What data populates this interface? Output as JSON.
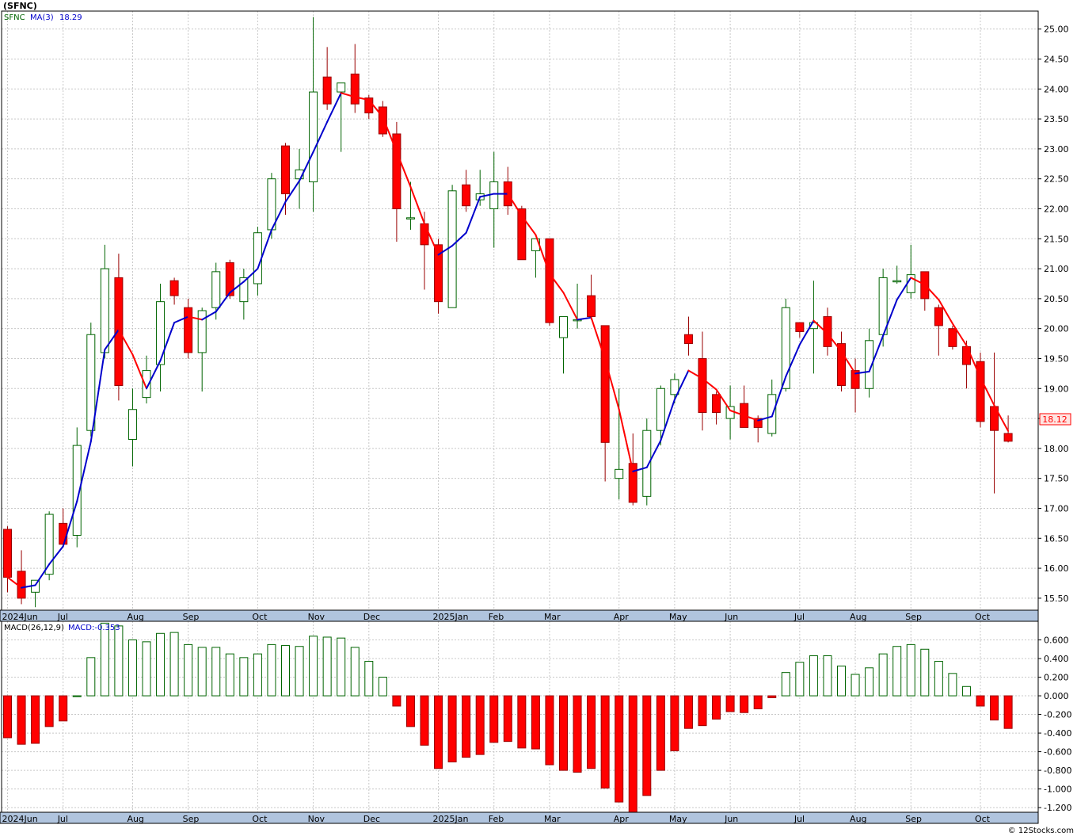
{
  "title": "(SFNC)",
  "credit": "© 12Stocks.com",
  "legend": {
    "symbol": "SFNC",
    "ma_label": "MA(3)",
    "ma_value": "18.29",
    "macd_label": "MACD(26,12,9)",
    "macd_value_label": "MACD:-0.353"
  },
  "last_price_label": "18.12",
  "colors": {
    "up_candle": "#006400",
    "down_candle": "#ff0000",
    "ma_up": "#0000cc",
    "ma_down": "#ff0000",
    "grid": "#c8c8c8",
    "axis_bar": "#b0c4de"
  },
  "month_labels": [
    "2024Jun",
    "Jul",
    "Aug",
    "Sep",
    "Oct",
    "Nov",
    "Dec",
    "2025Jan",
    "Feb",
    "Mar",
    "Apr",
    "May",
    "Jun",
    "Jul",
    "Aug",
    "Sep",
    "Oct"
  ],
  "chart_data": [
    {
      "type": "candlestick",
      "series_name": "SFNC",
      "x_unit": "week",
      "x_range": [
        0,
        72
      ],
      "ylim": [
        15.3,
        25.3
      ],
      "y_ticks": [
        "15.50",
        "16.00",
        "16.50",
        "17.00",
        "17.50",
        "18.00",
        "18.50",
        "19.00",
        "19.50",
        "20.00",
        "20.50",
        "21.00",
        "21.50",
        "22.00",
        "22.50",
        "23.00",
        "23.50",
        "24.00",
        "24.50",
        "25.00"
      ],
      "months": [
        {
          "label": "2024Jun",
          "x": 0
        },
        {
          "label": "Jul",
          "x": 4
        },
        {
          "label": "Aug",
          "x": 9
        },
        {
          "label": "Sep",
          "x": 13
        },
        {
          "label": "Oct",
          "x": 18
        },
        {
          "label": "Nov",
          "x": 22
        },
        {
          "label": "Dec",
          "x": 26
        },
        {
          "label": "2025Jan",
          "x": 31
        },
        {
          "label": "Feb",
          "x": 35
        },
        {
          "label": "Mar",
          "x": 39
        },
        {
          "label": "Apr",
          "x": 44
        },
        {
          "label": "May",
          "x": 48
        },
        {
          "label": "Jun",
          "x": 52
        },
        {
          "label": "Jul",
          "x": 57
        },
        {
          "label": "Aug",
          "x": 61
        },
        {
          "label": "Sep",
          "x": 65
        },
        {
          "label": "Oct",
          "x": 70
        }
      ],
      "candles": [
        {
          "o": 16.65,
          "h": 16.7,
          "l": 15.6,
          "c": 15.85
        },
        {
          "o": 15.95,
          "h": 16.3,
          "l": 15.4,
          "c": 15.5
        },
        {
          "o": 15.6,
          "h": 15.8,
          "l": 15.35,
          "c": 15.8
        },
        {
          "o": 15.9,
          "h": 16.95,
          "l": 15.8,
          "c": 16.9
        },
        {
          "o": 16.75,
          "h": 17.0,
          "l": 16.35,
          "c": 16.4
        },
        {
          "o": 16.55,
          "h": 18.35,
          "l": 16.35,
          "c": 18.05
        },
        {
          "o": 18.3,
          "h": 20.1,
          "l": 18.2,
          "c": 19.9
        },
        {
          "o": 19.6,
          "h": 21.4,
          "l": 19.5,
          "c": 21.0
        },
        {
          "o": 20.85,
          "h": 21.25,
          "l": 18.8,
          "c": 19.05
        },
        {
          "o": 18.15,
          "h": 19.0,
          "l": 17.7,
          "c": 18.65
        },
        {
          "o": 18.85,
          "h": 19.55,
          "l": 18.75,
          "c": 19.3
        },
        {
          "o": 19.4,
          "h": 20.75,
          "l": 18.95,
          "c": 20.45
        },
        {
          "o": 20.8,
          "h": 20.85,
          "l": 20.4,
          "c": 20.55
        },
        {
          "o": 20.35,
          "h": 20.5,
          "l": 19.5,
          "c": 19.6
        },
        {
          "o": 19.6,
          "h": 20.35,
          "l": 18.95,
          "c": 20.3
        },
        {
          "o": 20.35,
          "h": 21.1,
          "l": 20.15,
          "c": 20.95
        },
        {
          "o": 21.1,
          "h": 21.15,
          "l": 20.5,
          "c": 20.55
        },
        {
          "o": 20.45,
          "h": 21.0,
          "l": 20.15,
          "c": 20.85
        },
        {
          "o": 20.75,
          "h": 21.7,
          "l": 20.55,
          "c": 21.6
        },
        {
          "o": 21.65,
          "h": 22.6,
          "l": 21.5,
          "c": 22.5
        },
        {
          "o": 23.05,
          "h": 23.1,
          "l": 21.9,
          "c": 22.25
        },
        {
          "o": 22.5,
          "h": 23.0,
          "l": 22.0,
          "c": 22.65
        },
        {
          "o": 22.45,
          "h": 25.2,
          "l": 21.95,
          "c": 23.95
        },
        {
          "o": 24.2,
          "h": 24.7,
          "l": 23.65,
          "c": 23.75
        },
        {
          "o": 23.95,
          "h": 24.05,
          "l": 22.95,
          "c": 24.1
        },
        {
          "o": 24.25,
          "h": 24.75,
          "l": 23.6,
          "c": 23.75
        },
        {
          "o": 23.85,
          "h": 23.9,
          "l": 23.5,
          "c": 23.6
        },
        {
          "o": 23.7,
          "h": 23.8,
          "l": 23.2,
          "c": 23.25
        },
        {
          "o": 23.25,
          "h": 23.45,
          "l": 21.45,
          "c": 22.0
        },
        {
          "o": 21.85,
          "h": 22.45,
          "l": 21.65,
          "c": 21.85
        },
        {
          "o": 21.75,
          "h": 21.95,
          "l": 20.65,
          "c": 21.4
        },
        {
          "o": 21.4,
          "h": 21.5,
          "l": 20.25,
          "c": 20.45
        },
        {
          "o": 20.35,
          "h": 22.4,
          "l": 20.35,
          "c": 22.3
        },
        {
          "o": 22.4,
          "h": 22.65,
          "l": 21.95,
          "c": 22.05
        },
        {
          "o": 22.15,
          "h": 22.65,
          "l": 22.05,
          "c": 22.25
        },
        {
          "o": 22.0,
          "h": 22.95,
          "l": 21.35,
          "c": 22.45
        },
        {
          "o": 22.45,
          "h": 22.7,
          "l": 21.9,
          "c": 22.05
        },
        {
          "o": 22.0,
          "h": 22.05,
          "l": 21.15,
          "c": 21.15
        },
        {
          "o": 21.3,
          "h": 21.5,
          "l": 20.85,
          "c": 21.5
        },
        {
          "o": 21.5,
          "h": 21.5,
          "l": 20.05,
          "c": 20.1
        },
        {
          "o": 19.85,
          "h": 20.2,
          "l": 19.25,
          "c": 20.2
        },
        {
          "o": 20.15,
          "h": 20.75,
          "l": 20.0,
          "c": 20.15
        },
        {
          "o": 20.55,
          "h": 20.9,
          "l": 20.15,
          "c": 20.2
        },
        {
          "o": 20.05,
          "h": 20.05,
          "l": 17.45,
          "c": 18.1
        },
        {
          "o": 17.5,
          "h": 19.0,
          "l": 17.15,
          "c": 17.65
        },
        {
          "o": 17.75,
          "h": 18.25,
          "l": 17.05,
          "c": 17.1
        },
        {
          "o": 17.2,
          "h": 18.5,
          "l": 17.05,
          "c": 18.3
        },
        {
          "o": 18.3,
          "h": 19.05,
          "l": 18.05,
          "c": 19.0
        },
        {
          "o": 18.9,
          "h": 19.25,
          "l": 18.75,
          "c": 19.15
        },
        {
          "o": 19.9,
          "h": 20.2,
          "l": 19.55,
          "c": 19.75
        },
        {
          "o": 19.5,
          "h": 19.95,
          "l": 18.3,
          "c": 18.6
        },
        {
          "o": 18.9,
          "h": 18.95,
          "l": 18.4,
          "c": 18.6
        },
        {
          "o": 18.5,
          "h": 19.05,
          "l": 18.15,
          "c": 18.7
        },
        {
          "o": 18.75,
          "h": 19.05,
          "l": 18.35,
          "c": 18.35
        },
        {
          "o": 18.5,
          "h": 18.55,
          "l": 18.1,
          "c": 18.35
        },
        {
          "o": 18.25,
          "h": 19.15,
          "l": 18.2,
          "c": 18.9
        },
        {
          "o": 19.0,
          "h": 20.5,
          "l": 18.95,
          "c": 20.35
        },
        {
          "o": 20.1,
          "h": 20.1,
          "l": 19.85,
          "c": 19.95
        },
        {
          "o": 20.0,
          "h": 20.8,
          "l": 19.25,
          "c": 20.1
        },
        {
          "o": 20.2,
          "h": 20.35,
          "l": 19.55,
          "c": 19.7
        },
        {
          "o": 19.75,
          "h": 19.95,
          "l": 18.95,
          "c": 19.05
        },
        {
          "o": 19.3,
          "h": 19.5,
          "l": 18.6,
          "c": 19.0
        },
        {
          "o": 19.0,
          "h": 20.0,
          "l": 18.85,
          "c": 19.8
        },
        {
          "o": 19.9,
          "h": 21.0,
          "l": 19.7,
          "c": 20.85
        },
        {
          "o": 20.8,
          "h": 21.05,
          "l": 20.75,
          "c": 20.8
        },
        {
          "o": 20.6,
          "h": 21.4,
          "l": 20.5,
          "c": 20.9
        },
        {
          "o": 20.95,
          "h": 20.95,
          "l": 20.3,
          "c": 20.5
        },
        {
          "o": 20.35,
          "h": 20.4,
          "l": 19.55,
          "c": 20.05
        },
        {
          "o": 20.0,
          "h": 20.05,
          "l": 19.65,
          "c": 19.7
        },
        {
          "o": 19.7,
          "h": 19.8,
          "l": 19.0,
          "c": 19.4
        },
        {
          "o": 19.45,
          "h": 19.6,
          "l": 18.35,
          "c": 18.45
        },
        {
          "o": 18.7,
          "h": 19.6,
          "l": 17.25,
          "c": 18.3
        },
        {
          "o": 18.25,
          "h": 18.55,
          "l": 18.1,
          "c": 18.12
        }
      ]
    },
    {
      "type": "bar",
      "series_name": "MACD",
      "ylim": [
        -1.25,
        0.8
      ],
      "y_ticks": [
        "0.600",
        "0.400",
        "0.200",
        "0.000",
        "-0.200",
        "-0.400",
        "-0.600",
        "-0.800",
        "-1.000",
        "-1.200"
      ],
      "values": [
        -0.45,
        -0.52,
        -0.51,
        -0.33,
        -0.27,
        0.0,
        0.41,
        0.78,
        0.75,
        0.6,
        0.58,
        0.67,
        0.68,
        0.55,
        0.52,
        0.52,
        0.45,
        0.41,
        0.45,
        0.55,
        0.54,
        0.53,
        0.64,
        0.63,
        0.62,
        0.52,
        0.37,
        0.2,
        -0.11,
        -0.33,
        -0.53,
        -0.78,
        -0.71,
        -0.66,
        -0.63,
        -0.5,
        -0.49,
        -0.56,
        -0.57,
        -0.74,
        -0.8,
        -0.82,
        -0.78,
        -0.99,
        -1.14,
        -1.27,
        -1.07,
        -0.8,
        -0.59,
        -0.35,
        -0.32,
        -0.25,
        -0.17,
        -0.18,
        -0.14,
        -0.02,
        0.25,
        0.36,
        0.43,
        0.43,
        0.32,
        0.23,
        0.3,
        0.45,
        0.53,
        0.55,
        0.5,
        0.37,
        0.24,
        0.1,
        -0.11,
        -0.26,
        -0.35
      ]
    }
  ]
}
